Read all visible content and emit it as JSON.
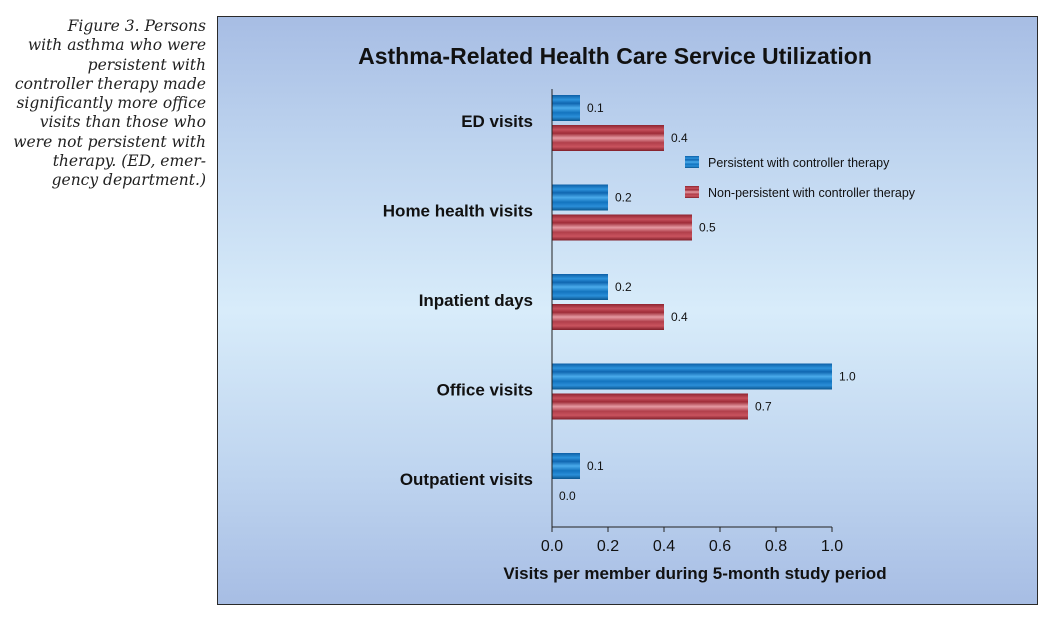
{
  "caption": "Figure 3. Persons with asthma who were persistent with controller therapy made significantly more office visits than those who were not persistent with therapy. (ED, emergency department.)",
  "caption_lines": [
    "Figure 3. Persons",
    "with asthma who were",
    "persistent with",
    "controller therapy made",
    "significantly more office",
    "visits than those who",
    "were not persistent with",
    "therapy. (ED, emer-",
    "gency department.)"
  ],
  "colors": {
    "persistent": "#1f7dc8",
    "non_persistent": "#b83a47"
  },
  "chart_data": {
    "type": "bar",
    "orientation": "horizontal",
    "title": "Asthma-Related Health Care Service Utilization",
    "xlabel": "Visits per member during 5-month study period",
    "ylabel": "",
    "categories": [
      "ED visits",
      "Home health visits",
      "Inpatient days",
      "Office visits",
      "Outpatient visits"
    ],
    "series": [
      {
        "name": "Persistent with controller therapy",
        "values": [
          0.1,
          0.2,
          0.2,
          1.0,
          0.1
        ],
        "labels": [
          "0.1",
          "0.2",
          "0.2",
          "1.0",
          "0.1"
        ]
      },
      {
        "name": "Non-persistent with controller therapy",
        "values": [
          0.4,
          0.5,
          0.4,
          0.7,
          0.0
        ],
        "labels": [
          "0.4",
          "0.5",
          "0.4",
          "0.7",
          "0.0"
        ]
      }
    ],
    "xlim": [
      0,
      1.0
    ],
    "xticks": [
      "0.0",
      "0.2",
      "0.4",
      "0.6",
      "0.8",
      "1.0"
    ],
    "grid": false,
    "legend": "right"
  }
}
